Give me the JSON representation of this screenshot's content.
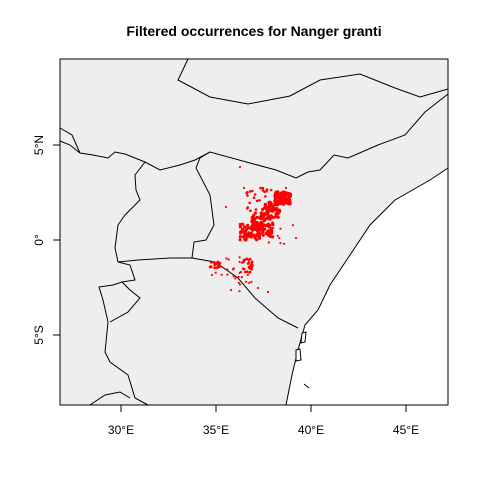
{
  "map": {
    "title": "Filtered occurrences for Nanger granti",
    "x_ticks": [
      "30°E",
      "35°E",
      "40°E",
      "45°E"
    ],
    "y_ticks": [
      "5°N",
      "0°",
      "5°S"
    ],
    "colors": {
      "land": "#eeeeee",
      "ocean": "#ffffff",
      "border": "#000000",
      "points": "#ff0000"
    }
  }
}
